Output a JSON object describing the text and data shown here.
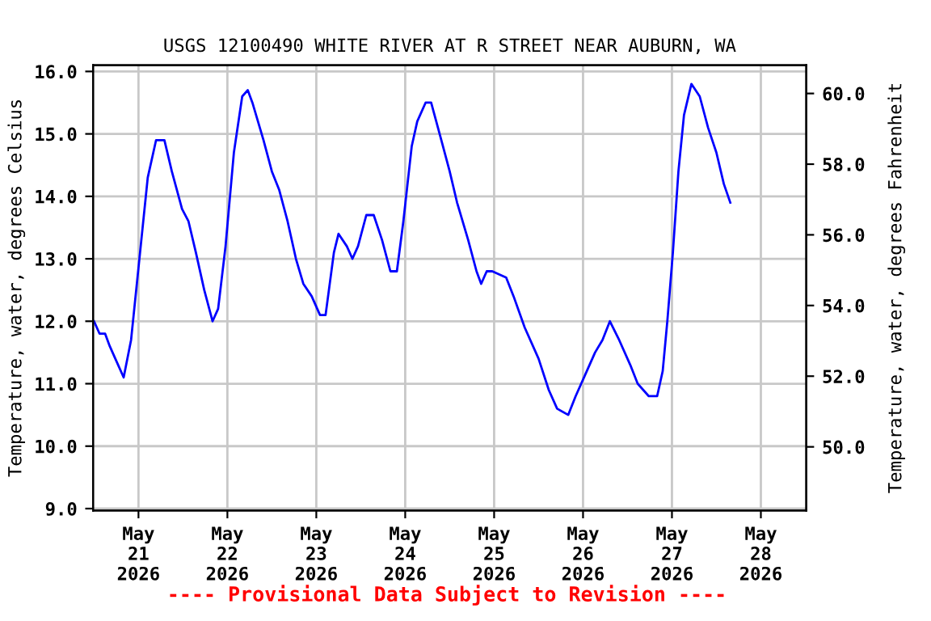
{
  "chart_data": {
    "type": "line",
    "title": "USGS 12100490 WHITE RIVER AT R STREET NEAR AUBURN, WA",
    "ylabel": "Temperature, water, degrees Celsius",
    "y2label": "Temperature, water, degrees Fahrenheit",
    "annotations": [
      "---- Provisional Data Subject to Revision ----"
    ],
    "x": [
      "2026-05-20T12:00",
      "2026-05-20T13:30",
      "2026-05-20T15:00",
      "2026-05-20T16:15",
      "2026-05-20T17:45",
      "2026-05-20T20:00",
      "2026-05-20T22:00",
      "2026-05-21T00:15",
      "2026-05-21T02:30",
      "2026-05-21T04:45",
      "2026-05-21T07:00",
      "2026-05-21T09:00",
      "2026-05-21T11:45",
      "2026-05-21T13:30",
      "2026-05-21T15:30",
      "2026-05-21T17:45",
      "2026-05-21T20:00",
      "2026-05-21T21:30",
      "2026-05-21T23:30",
      "2026-05-22T01:45",
      "2026-05-22T04:00",
      "2026-05-22T05:30",
      "2026-05-22T06:45",
      "2026-05-22T09:45",
      "2026-05-22T12:00",
      "2026-05-22T14:00",
      "2026-05-22T16:15",
      "2026-05-22T18:30",
      "2026-05-22T20:30",
      "2026-05-22T22:45",
      "2026-05-23T01:00",
      "2026-05-23T02:30",
      "2026-05-23T04:45",
      "2026-05-23T06:00",
      "2026-05-23T08:15",
      "2026-05-23T09:45",
      "2026-05-23T11:15",
      "2026-05-23T13:30",
      "2026-05-23T15:30",
      "2026-05-23T17:45",
      "2026-05-23T20:00",
      "2026-05-23T21:45",
      "2026-05-23T23:30",
      "2026-05-24T01:45",
      "2026-05-24T03:15",
      "2026-05-24T05:30",
      "2026-05-24T07:00",
      "2026-05-24T09:45",
      "2026-05-24T12:00",
      "2026-05-24T14:00",
      "2026-05-24T17:00",
      "2026-05-24T19:15",
      "2026-05-24T20:30",
      "2026-05-24T22:00",
      "2026-05-24T23:30",
      "2026-05-25T03:15",
      "2026-05-25T05:15",
      "2026-05-25T08:15",
      "2026-05-25T12:00",
      "2026-05-25T14:45",
      "2026-05-25T17:00",
      "2026-05-25T20:00",
      "2026-05-25T22:00",
      "2026-05-26T01:00",
      "2026-05-26T03:15",
      "2026-05-26T05:15",
      "2026-05-26T07:15",
      "2026-05-26T09:45",
      "2026-05-26T12:45",
      "2026-05-26T14:45",
      "2026-05-26T17:45",
      "2026-05-26T20:00",
      "2026-05-26T21:30",
      "2026-05-26T22:45",
      "2026-05-27T00:15",
      "2026-05-27T01:45",
      "2026-05-27T03:15",
      "2026-05-27T05:15",
      "2026-05-27T07:30",
      "2026-05-27T09:45",
      "2026-05-27T12:00",
      "2026-05-27T14:00",
      "2026-05-27T15:45"
    ],
    "series": [
      {
        "color": "#0000ff",
        "values": [
          12.0,
          11.8,
          11.8,
          11.6,
          11.4,
          11.1,
          11.7,
          13.0,
          14.3,
          14.9,
          14.9,
          14.4,
          13.8,
          13.6,
          13.1,
          12.5,
          12.0,
          12.2,
          13.2,
          14.7,
          15.6,
          15.7,
          15.5,
          14.9,
          14.4,
          14.1,
          13.6,
          13.0,
          12.6,
          12.4,
          12.1,
          12.1,
          13.1,
          13.4,
          13.2,
          13.0,
          13.2,
          13.7,
          13.7,
          13.3,
          12.8,
          12.8,
          13.6,
          14.8,
          15.2,
          15.5,
          15.5,
          14.9,
          14.4,
          13.9,
          13.3,
          12.8,
          12.6,
          12.8,
          12.8,
          12.7,
          12.4,
          11.9,
          11.4,
          10.9,
          10.6,
          10.5,
          10.8,
          11.2,
          11.5,
          11.7,
          12.0,
          11.7,
          11.3,
          11.0,
          10.8,
          10.8,
          11.2,
          12.0,
          13.1,
          14.4,
          15.3,
          15.8,
          15.6,
          15.1,
          14.7,
          14.2,
          13.9
        ]
      }
    ],
    "xlim": [
      "2026-05-20T11:45",
      "2026-05-28T12:15"
    ],
    "xticks": [
      {
        "value": "2026-05-21",
        "label": "May\n21\n2026"
      },
      {
        "value": "2026-05-22",
        "label": "May\n22\n2026"
      },
      {
        "value": "2026-05-23",
        "label": "May\n23\n2026"
      },
      {
        "value": "2026-05-24",
        "label": "May\n24\n2026"
      },
      {
        "value": "2026-05-25",
        "label": "May\n25\n2026"
      },
      {
        "value": "2026-05-26",
        "label": "May\n26\n2026"
      },
      {
        "value": "2026-05-27",
        "label": "May\n27\n2026"
      },
      {
        "value": "2026-05-28",
        "label": "May\n28\n2026"
      }
    ],
    "ylim": [
      8.97,
      16.1
    ],
    "yticks": [
      {
        "value": 9,
        "label": "9.0"
      },
      {
        "value": 10,
        "label": "10.0"
      },
      {
        "value": 11,
        "label": "11.0"
      },
      {
        "value": 12,
        "label": "12.0"
      },
      {
        "value": 13,
        "label": "13.0"
      },
      {
        "value": 14,
        "label": "14.0"
      },
      {
        "value": 15,
        "label": "15.0"
      },
      {
        "value": 16,
        "label": "16.0"
      }
    ],
    "y2lim": [
      48.2,
      60.8
    ],
    "y2ticks": [
      {
        "value": 50,
        "label": "50.0"
      },
      {
        "value": 52,
        "label": "52.0"
      },
      {
        "value": 54,
        "label": "54.0"
      },
      {
        "value": 56,
        "label": "56.0"
      },
      {
        "value": 58,
        "label": "58.0"
      },
      {
        "value": 60,
        "label": "60.0"
      }
    ],
    "grid": true
  }
}
